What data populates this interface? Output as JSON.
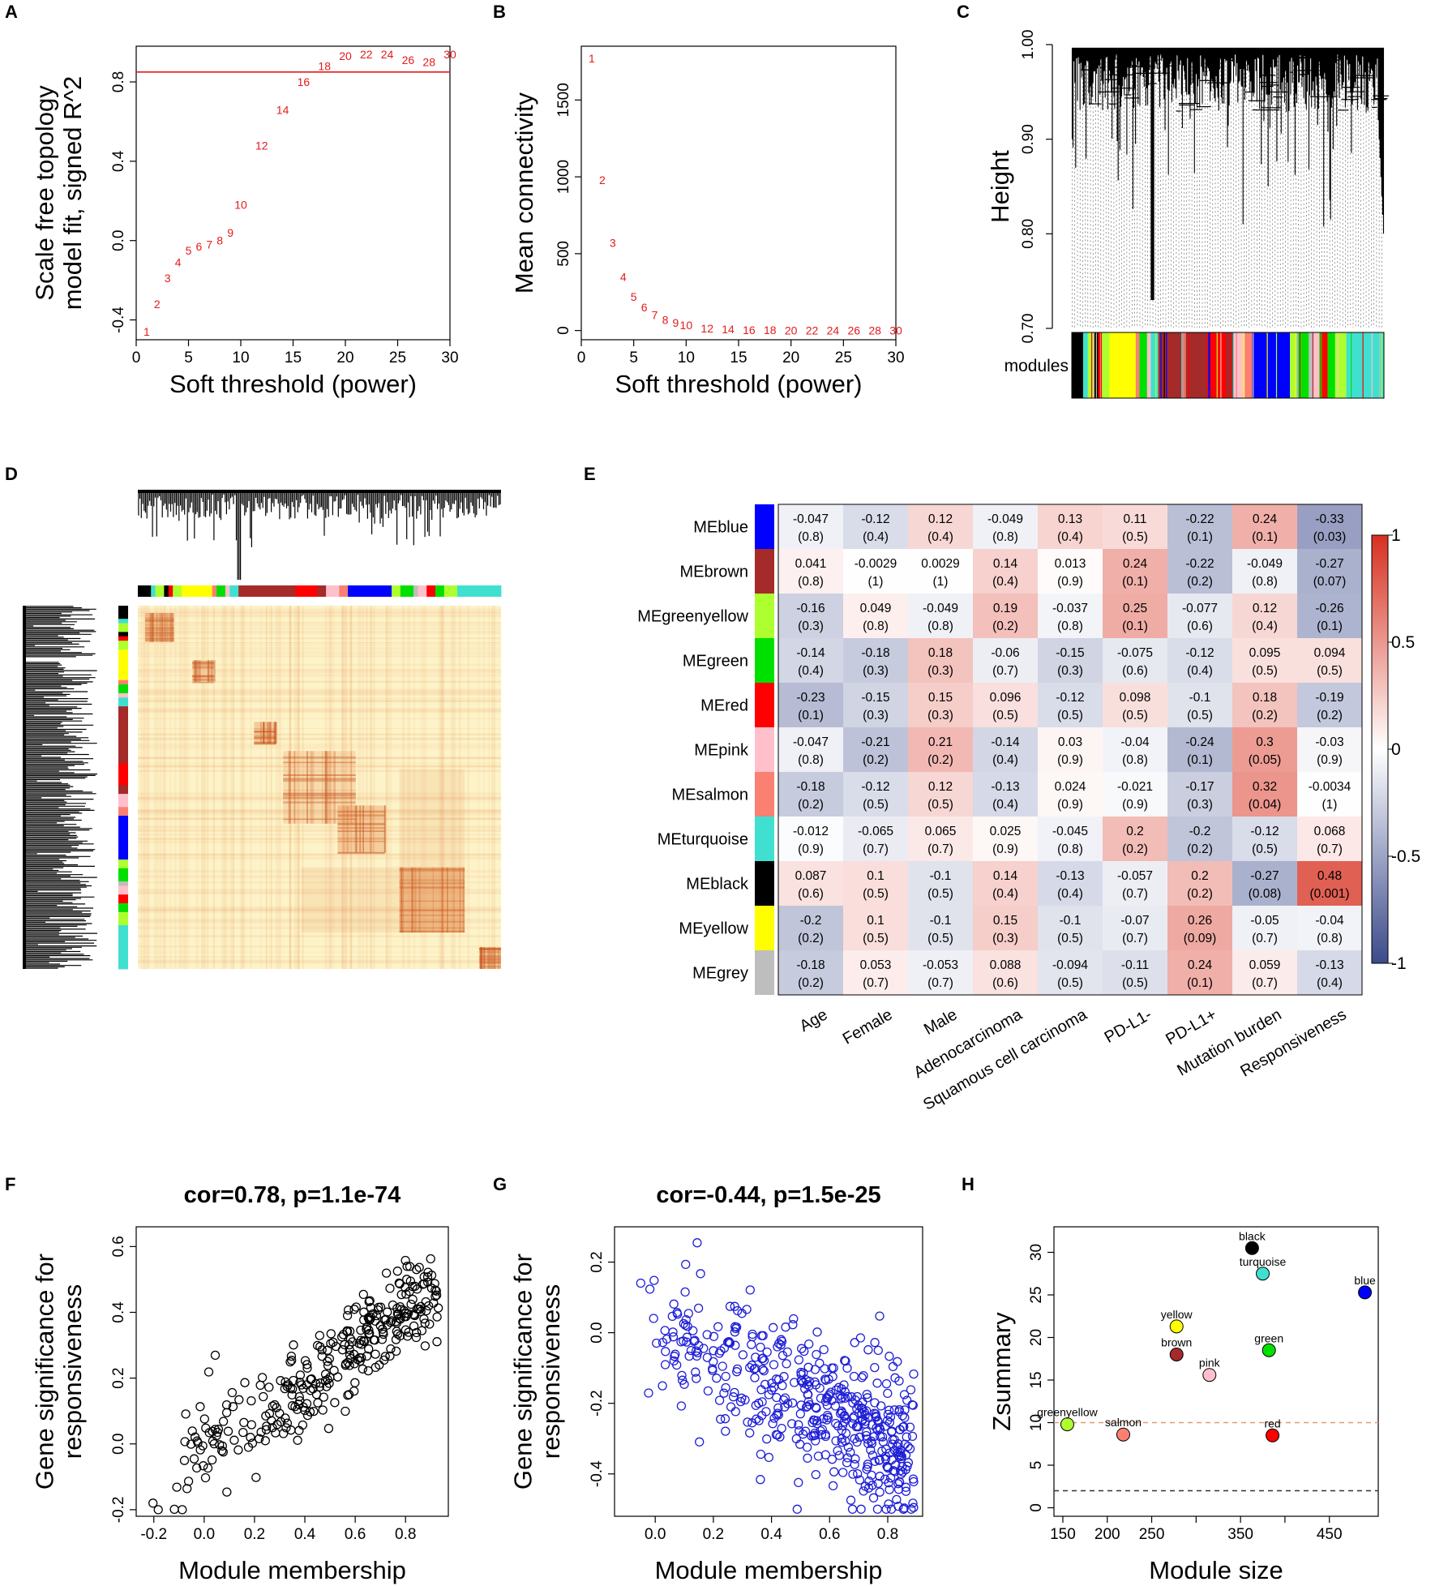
{
  "panels": {
    "A": {
      "letter": "A"
    },
    "B": {
      "letter": "B"
    },
    "C": {
      "letter": "C"
    },
    "D": {
      "letter": "D"
    },
    "E": {
      "letter": "E"
    },
    "F": {
      "letter": "F"
    },
    "G": {
      "letter": "G"
    },
    "H": {
      "letter": "H"
    }
  },
  "colors": {
    "red": "#e41a1c",
    "black": "#000000",
    "blue_points": "#1f1fd6",
    "heat_low": "#3b4a8b",
    "heat_mid": "#ffffff",
    "heat_high": "#d7301f",
    "tom_base": "#fdf3c8",
    "tom_hot": "#e07a3a"
  },
  "chart_data": [
    {
      "panel": "A",
      "type": "scatter",
      "title": "",
      "xlabel": "Soft threshold (power)",
      "ylabel": "Scale free topology model fit, signed R^2",
      "ylabel_lines": [
        "Scale free topology",
        "model fit, signed R^2"
      ],
      "xlim": [
        0,
        30
      ],
      "ylim": [
        -0.5,
        0.98
      ],
      "xticks": [
        0,
        5,
        10,
        15,
        20,
        25,
        30
      ],
      "yticks": [
        -0.4,
        0.0,
        0.4,
        0.8
      ],
      "ytick_labels": [
        "-0.4",
        "0.0",
        "0.4",
        "0.8"
      ],
      "hline": 0.85,
      "points": [
        {
          "x": 1,
          "y": -0.46,
          "label": "1"
        },
        {
          "x": 2,
          "y": -0.32,
          "label": "2"
        },
        {
          "x": 3,
          "y": -0.19,
          "label": "3"
        },
        {
          "x": 4,
          "y": -0.11,
          "label": "4"
        },
        {
          "x": 5,
          "y": -0.05,
          "label": "5"
        },
        {
          "x": 6,
          "y": -0.03,
          "label": "6"
        },
        {
          "x": 7,
          "y": -0.02,
          "label": "7"
        },
        {
          "x": 8,
          "y": 0.0,
          "label": "8"
        },
        {
          "x": 9,
          "y": 0.04,
          "label": "9"
        },
        {
          "x": 10,
          "y": 0.18,
          "label": "10"
        },
        {
          "x": 12,
          "y": 0.48,
          "label": "12"
        },
        {
          "x": 14,
          "y": 0.66,
          "label": "14"
        },
        {
          "x": 16,
          "y": 0.8,
          "label": "16"
        },
        {
          "x": 18,
          "y": 0.88,
          "label": "18"
        },
        {
          "x": 20,
          "y": 0.93,
          "label": "20"
        },
        {
          "x": 22,
          "y": 0.94,
          "label": "22"
        },
        {
          "x": 24,
          "y": 0.94,
          "label": "24"
        },
        {
          "x": 26,
          "y": 0.91,
          "label": "26"
        },
        {
          "x": 28,
          "y": 0.9,
          "label": "28"
        },
        {
          "x": 30,
          "y": 0.94,
          "label": "30"
        }
      ]
    },
    {
      "panel": "B",
      "type": "scatter",
      "title": "",
      "xlabel": "Soft threshold (power)",
      "ylabel": "Mean connectivity",
      "xlim": [
        0,
        30
      ],
      "ylim": [
        -60,
        1850
      ],
      "xticks": [
        0,
        5,
        10,
        15,
        20,
        25,
        30
      ],
      "yticks": [
        0,
        500,
        1000,
        1500
      ],
      "ytick_labels": [
        "0",
        "500",
        "1000",
        "1500"
      ],
      "points": [
        {
          "x": 1,
          "y": 1770,
          "label": "1"
        },
        {
          "x": 2,
          "y": 980,
          "label": "2"
        },
        {
          "x": 3,
          "y": 570,
          "label": "3"
        },
        {
          "x": 4,
          "y": 350,
          "label": "4"
        },
        {
          "x": 5,
          "y": 220,
          "label": "5"
        },
        {
          "x": 6,
          "y": 150,
          "label": "6"
        },
        {
          "x": 7,
          "y": 100,
          "label": "7"
        },
        {
          "x": 8,
          "y": 70,
          "label": "8"
        },
        {
          "x": 9,
          "y": 50,
          "label": "9"
        },
        {
          "x": 10,
          "y": 35,
          "label": "10"
        },
        {
          "x": 12,
          "y": 15,
          "label": "12"
        },
        {
          "x": 14,
          "y": 8,
          "label": "14"
        },
        {
          "x": 16,
          "y": 4,
          "label": "16"
        },
        {
          "x": 18,
          "y": 2,
          "label": "18"
        },
        {
          "x": 20,
          "y": 1,
          "label": "20"
        },
        {
          "x": 22,
          "y": 1,
          "label": "22"
        },
        {
          "x": 24,
          "y": 1,
          "label": "24"
        },
        {
          "x": 26,
          "y": 1,
          "label": "26"
        },
        {
          "x": 28,
          "y": 1,
          "label": "28"
        },
        {
          "x": 30,
          "y": 1,
          "label": "30"
        }
      ]
    },
    {
      "panel": "C",
      "type": "dendrogram",
      "ylabel": "Height",
      "ylim": [
        0.7,
        1.0
      ],
      "yticks": [
        0.7,
        0.8,
        0.9,
        1.0
      ],
      "ytick_labels": [
        "0.70",
        "0.80",
        "0.90",
        "1.00"
      ],
      "color_bar_label": "modules",
      "module_color_segments": [
        {
          "color": "black",
          "frac": 0.03
        },
        {
          "color": "turquoise",
          "frac": 0.01
        },
        {
          "color": "greenyellow",
          "frac": 0.02
        },
        {
          "color": "black",
          "frac": 0.01
        },
        {
          "color": "red",
          "frac": 0.01
        },
        {
          "color": "greenyellow",
          "frac": 0.02
        },
        {
          "color": "yellow",
          "frac": 0.07
        },
        {
          "color": "salmon",
          "frac": 0.01
        },
        {
          "color": "green",
          "frac": 0.02
        },
        {
          "color": "pink",
          "frac": 0.01
        },
        {
          "color": "turquoise",
          "frac": 0.02
        },
        {
          "color": "brown",
          "frac": 0.13
        },
        {
          "color": "red",
          "frac": 0.05
        },
        {
          "color": "brown",
          "frac": 0.02
        },
        {
          "color": "pink",
          "frac": 0.03
        },
        {
          "color": "salmon",
          "frac": 0.02
        },
        {
          "color": "blue",
          "frac": 0.1
        },
        {
          "color": "greenyellow",
          "frac": 0.02
        },
        {
          "color": "green",
          "frac": 0.03
        },
        {
          "color": "grey",
          "frac": 0.01
        },
        {
          "color": "pink",
          "frac": 0.02
        },
        {
          "color": "red",
          "frac": 0.02
        },
        {
          "color": "green",
          "frac": 0.02
        },
        {
          "color": "greenyellow",
          "frac": 0.03
        },
        {
          "color": "turquoise",
          "frac": 0.1
        }
      ]
    },
    {
      "panel": "D",
      "type": "heatmap",
      "description": "TOM plot",
      "diagonal_blocks": [
        {
          "start": 0.02,
          "size": 0.08,
          "intensity": 0.7
        },
        {
          "start": 0.15,
          "size": 0.06,
          "intensity": 0.35
        },
        {
          "start": 0.32,
          "size": 0.06,
          "intensity": 0.6
        },
        {
          "start": 0.4,
          "size": 0.2,
          "intensity": 0.35
        },
        {
          "start": 0.55,
          "size": 0.13,
          "intensity": 0.55
        },
        {
          "start": 0.72,
          "size": 0.18,
          "intensity": 0.6
        },
        {
          "start": 0.94,
          "size": 0.06,
          "intensity": 0.75
        }
      ]
    },
    {
      "panel": "E",
      "type": "heatmap",
      "rows": [
        "MEblue",
        "MEbrown",
        "MEgreenyellow",
        "MEgreen",
        "MEred",
        "MEpink",
        "MEsalmon",
        "MEturquoise",
        "MEblack",
        "MEyellow",
        "MEgrey"
      ],
      "row_colors": [
        "#0000ff",
        "#a52a2a",
        "#adff2f",
        "#00e000",
        "#ff0000",
        "#ffc0cb",
        "#fa8072",
        "#40e0d0",
        "#000000",
        "#ffff00",
        "#bebebe"
      ],
      "columns": [
        "Age",
        "Female",
        "Male",
        "Adenocarcinoma",
        "Squamous cell carcinoma",
        "PD-L1-",
        "PD-L1+",
        "Mutation burden",
        "Responsiveness"
      ],
      "cor_labels": [
        [
          "-0.047",
          "-0.12",
          "0.12",
          "-0.049",
          "0.13",
          "0.11",
          "-0.22",
          "0.24",
          "-0.33"
        ],
        [
          "0.041",
          "-0.0029",
          "0.0029",
          "0.14",
          "0.013",
          "0.24",
          "-0.22",
          "-0.049",
          "-0.27"
        ],
        [
          "-0.16",
          "0.049",
          "-0.049",
          "0.19",
          "-0.037",
          "0.25",
          "-0.077",
          "0.12",
          "-0.26"
        ],
        [
          "-0.14",
          "-0.18",
          "0.18",
          "-0.06",
          "-0.15",
          "-0.075",
          "-0.12",
          "0.095",
          "0.094"
        ],
        [
          "-0.23",
          "-0.15",
          "0.15",
          "0.096",
          "-0.12",
          "0.098",
          "-0.1",
          "0.18",
          "-0.19"
        ],
        [
          "-0.047",
          "-0.21",
          "0.21",
          "-0.14",
          "0.03",
          "-0.04",
          "-0.24",
          "0.3",
          "-0.03"
        ],
        [
          "-0.18",
          "-0.12",
          "0.12",
          "-0.13",
          "0.024",
          "-0.021",
          "-0.17",
          "0.32",
          "-0.0034"
        ],
        [
          "-0.012",
          "-0.065",
          "0.065",
          "0.025",
          "-0.045",
          "0.2",
          "-0.2",
          "-0.12",
          "0.068"
        ],
        [
          "0.087",
          "0.1",
          "-0.1",
          "0.14",
          "-0.13",
          "-0.057",
          "0.2",
          "-0.27",
          "0.48"
        ],
        [
          "-0.2",
          "0.1",
          "-0.1",
          "0.15",
          "-0.1",
          "-0.07",
          "0.26",
          "-0.05",
          "-0.04"
        ],
        [
          "-0.18",
          "0.053",
          "-0.053",
          "0.088",
          "-0.094",
          "-0.11",
          "0.24",
          "0.059",
          "-0.13"
        ]
      ],
      "p_labels": [
        [
          "(0.8)",
          "(0.4)",
          "(0.4)",
          "(0.8)",
          "(0.4)",
          "(0.5)",
          "(0.1)",
          "(0.1)",
          "(0.03)"
        ],
        [
          "(0.8)",
          "(1)",
          "(1)",
          "(0.4)",
          "(0.9)",
          "(0.1)",
          "(0.2)",
          "(0.8)",
          "(0.07)"
        ],
        [
          "(0.3)",
          "(0.8)",
          "(0.8)",
          "(0.2)",
          "(0.8)",
          "(0.1)",
          "(0.6)",
          "(0.4)",
          "(0.1)"
        ],
        [
          "(0.4)",
          "(0.3)",
          "(0.3)",
          "(0.7)",
          "(0.3)",
          "(0.6)",
          "(0.4)",
          "(0.5)",
          "(0.5)"
        ],
        [
          "(0.1)",
          "(0.3)",
          "(0.3)",
          "(0.5)",
          "(0.5)",
          "(0.5)",
          "(0.5)",
          "(0.2)",
          "(0.2)"
        ],
        [
          "(0.8)",
          "(0.2)",
          "(0.2)",
          "(0.4)",
          "(0.9)",
          "(0.8)",
          "(0.1)",
          "(0.05)",
          "(0.9)"
        ],
        [
          "(0.2)",
          "(0.5)",
          "(0.5)",
          "(0.4)",
          "(0.9)",
          "(0.9)",
          "(0.3)",
          "(0.04)",
          "(1)"
        ],
        [
          "(0.9)",
          "(0.7)",
          "(0.7)",
          "(0.9)",
          "(0.8)",
          "(0.2)",
          "(0.2)",
          "(0.5)",
          "(0.7)"
        ],
        [
          "(0.6)",
          "(0.5)",
          "(0.5)",
          "(0.4)",
          "(0.4)",
          "(0.7)",
          "(0.2)",
          "(0.08)",
          "(0.001)"
        ],
        [
          "(0.2)",
          "(0.5)",
          "(0.5)",
          "(0.3)",
          "(0.5)",
          "(0.7)",
          "(0.09)",
          "(0.7)",
          "(0.8)"
        ],
        [
          "(0.2)",
          "(0.7)",
          "(0.7)",
          "(0.6)",
          "(0.5)",
          "(0.5)",
          "(0.1)",
          "(0.7)",
          "(0.4)"
        ]
      ],
      "legend_ticks": [
        "1",
        "0.5",
        "0",
        "-0.5",
        "-1"
      ],
      "legend_range": [
        -1,
        1
      ]
    },
    {
      "panel": "F",
      "type": "scatter",
      "title": "cor=0.78, p=1.1e-74",
      "xlabel": "Module membership",
      "ylabel": "Gene significance for responsiveness",
      "ylabel_lines": [
        "Gene significance for",
        "responsiveness"
      ],
      "xlim": [
        -0.27,
        0.97
      ],
      "ylim": [
        -0.22,
        0.66
      ],
      "xticks": [
        -0.2,
        0.0,
        0.2,
        0.4,
        0.6,
        0.8
      ],
      "xtick_labels": [
        "-0.2",
        "0.0",
        "0.2",
        "0.4",
        "0.6",
        "0.8"
      ],
      "yticks": [
        -0.2,
        0.0,
        0.2,
        0.4,
        0.6
      ],
      "ytick_labels": [
        "-0.2",
        "0.0",
        "0.2",
        "0.4",
        "0.6"
      ],
      "marker": "open-circle",
      "n_points": 320,
      "cor": 0.78,
      "x_range_data": [
        -0.22,
        0.93
      ],
      "trend": {
        "slope": 0.52,
        "intercept": -0.02,
        "noise": 0.075
      }
    },
    {
      "panel": "G",
      "type": "scatter",
      "title": "cor=-0.44, p=1.5e-25",
      "xlabel": "Module membership",
      "ylabel": "Gene significance for responsiveness",
      "ylabel_lines": [
        "Gene significance for",
        "responsiveness"
      ],
      "xlim": [
        -0.14,
        0.92
      ],
      "ylim": [
        -0.52,
        0.3
      ],
      "xticks": [
        0.0,
        0.2,
        0.4,
        0.6,
        0.8
      ],
      "xtick_labels": [
        "0.0",
        "0.2",
        "0.4",
        "0.6",
        "0.8"
      ],
      "yticks": [
        -0.4,
        -0.2,
        0.0,
        0.2
      ],
      "ytick_labels": [
        "-0.4",
        "-0.2",
        "0.0",
        "0.2"
      ],
      "marker": "open-circle",
      "n_points": 480,
      "cor": -0.44,
      "x_range_data": [
        -0.1,
        0.89
      ],
      "trend": {
        "slope": -0.42,
        "intercept": 0.03,
        "noise": 0.1
      }
    },
    {
      "panel": "H",
      "type": "scatter",
      "title": "",
      "xlabel": "Module size",
      "ylabel": "Zsummary",
      "xlim": [
        140,
        505
      ],
      "ylim": [
        -1,
        33
      ],
      "xticks": [
        150,
        200,
        250,
        300,
        350,
        400,
        450
      ],
      "xtick_labels": [
        "150",
        "200",
        "250",
        "",
        "350",
        "",
        "450"
      ],
      "yticks": [
        0,
        5,
        10,
        15,
        20,
        25,
        30
      ],
      "ytick_labels": [
        "0",
        "5",
        "10",
        "15",
        "20",
        "25",
        "30"
      ],
      "hlines": [
        {
          "y": 10,
          "style": "dashed",
          "color": "#e39a6c"
        },
        {
          "y": 2,
          "style": "dashed",
          "color": "#333333"
        }
      ],
      "points": [
        {
          "module": "black",
          "x": 363,
          "y": 30.5,
          "color": "#000000"
        },
        {
          "module": "turquoise",
          "x": 375,
          "y": 27.5,
          "color": "#40e0d0"
        },
        {
          "module": "blue",
          "x": 490,
          "y": 25.3,
          "color": "#0000ff"
        },
        {
          "module": "yellow",
          "x": 278,
          "y": 21.3,
          "color": "#ffff00"
        },
        {
          "module": "green",
          "x": 382,
          "y": 18.5,
          "color": "#00e000"
        },
        {
          "module": "brown",
          "x": 278,
          "y": 18.0,
          "color": "#a52a2a"
        },
        {
          "module": "pink",
          "x": 315,
          "y": 15.6,
          "color": "#ffc0cb"
        },
        {
          "module": "greenyellow",
          "x": 155,
          "y": 9.8,
          "color": "#adff2f"
        },
        {
          "module": "salmon",
          "x": 218,
          "y": 8.6,
          "color": "#fa8072"
        },
        {
          "module": "red",
          "x": 386,
          "y": 8.5,
          "color": "#ff0000"
        }
      ]
    }
  ]
}
